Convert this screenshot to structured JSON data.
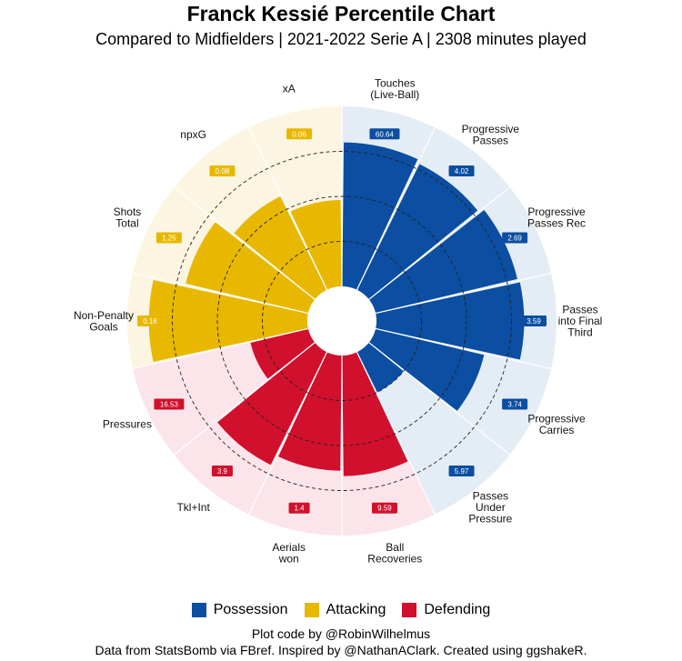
{
  "chart_data": {
    "type": "polar-bar",
    "title": "Franck Kessié Percentile Chart",
    "subtitle": "Compared to Midfielders | 2021-2022 Serie A | 2308 minutes played",
    "rlim": [
      0,
      100
    ],
    "gridlines": [
      25,
      50,
      75
    ],
    "legend": {
      "position": "bottom",
      "entries": [
        {
          "name": "Possession",
          "color": "#0b4ea2"
        },
        {
          "name": "Attacking",
          "color": "#e8b800"
        },
        {
          "name": "Defending",
          "color": "#d0102c"
        }
      ]
    },
    "groups": {
      "Possession": {
        "bar": "#0b4ea2",
        "bg": "#e4ecf5"
      },
      "Attacking": {
        "bar": "#e8b800",
        "bg": "#fcf5e1"
      },
      "Defending": {
        "bar": "#d0102c",
        "bg": "#fbe4ea"
      }
    },
    "categories": [
      {
        "label": "Touches\n(Live-Ball)",
        "group": "Possession",
        "percentile": 80,
        "value": "60.64"
      },
      {
        "label": "Progressive\nPasses",
        "group": "Possession",
        "percentile": 78,
        "value": "4.02"
      },
      {
        "label": "Progressive\nPasses Rec",
        "group": "Possession",
        "percentile": 81,
        "value": "2.69"
      },
      {
        "label": "Passes\ninto Final\nThird",
        "group": "Possession",
        "percentile": 82,
        "value": "3.59"
      },
      {
        "label": "Progressive\nCarries",
        "group": "Possession",
        "percentile": 62,
        "value": "3.74"
      },
      {
        "label": "Passes\nUnder\nPressure",
        "group": "Possession",
        "percentile": 25,
        "value": "5.97"
      },
      {
        "label": "Ball\nRecoveries",
        "group": "Defending",
        "percentile": 67,
        "value": "9.59"
      },
      {
        "label": "Aerials\nwon",
        "group": "Defending",
        "percentile": 64,
        "value": "1.4"
      },
      {
        "label": "Tkl+Int",
        "group": "Defending",
        "percentile": 70,
        "value": "3.9"
      },
      {
        "label": "Pressures",
        "group": "Defending",
        "percentile": 33,
        "value": "16.53"
      },
      {
        "label": "Non-Penalty\nGoals",
        "group": "Attacking",
        "percentile": 88,
        "value": "0.16"
      },
      {
        "label": "Shots\nTotal",
        "group": "Attacking",
        "percentile": 70,
        "value": "1.25"
      },
      {
        "label": "npxG",
        "group": "Attacking",
        "percentile": 58,
        "value": "0.08"
      },
      {
        "label": "xA",
        "group": "Attacking",
        "percentile": 48,
        "value": "0.06"
      }
    ]
  },
  "caption": {
    "line1": "Plot code by @RobinWilhelmus",
    "line2": "Data from StatsBomb via FBref. Inspired by @NathanAClark. Created using ggshakeR."
  }
}
